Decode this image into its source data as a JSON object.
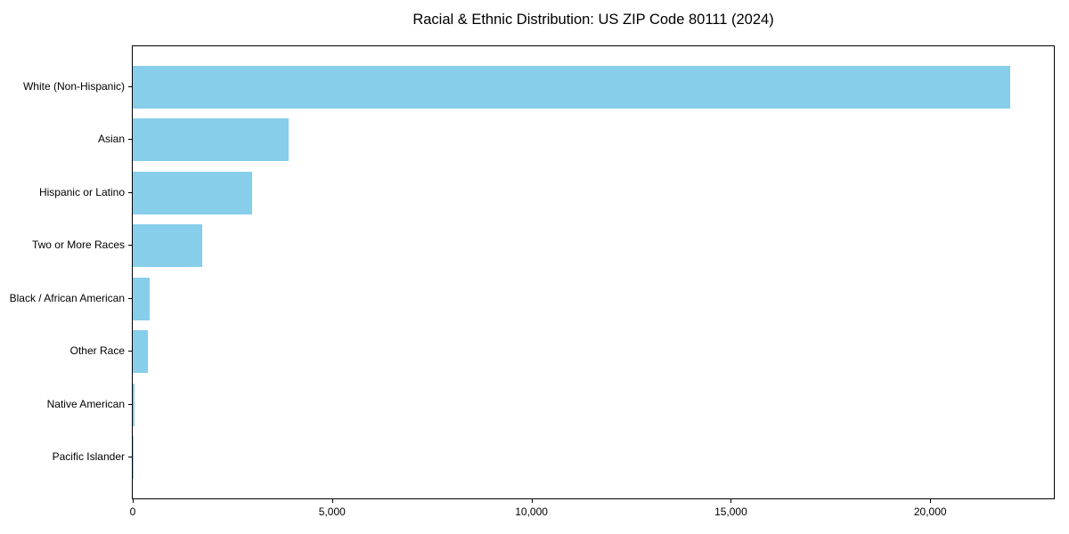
{
  "figure": {
    "background": "#FFFFFF",
    "spine_color": "#000000",
    "text_color": "#000000"
  },
  "chart_data": {
    "type": "bar",
    "orientation": "horizontal",
    "title": "Racial & Ethnic Distribution: US ZIP Code 80111 (2024)",
    "xlabel": "",
    "ylabel": "",
    "categories": [
      "White (Non-Hispanic)",
      "Asian",
      "Hispanic or Latino",
      "Two or More Races",
      "Black / African American",
      "Other Race",
      "Native American",
      "Pacific Islander"
    ],
    "values": [
      22000,
      3900,
      3000,
      1750,
      425,
      375,
      50,
      15
    ],
    "xlim": [
      0,
      23100
    ],
    "x_tick_values": [
      0,
      5000,
      10000,
      15000,
      20000
    ],
    "x_tick_labels": [
      "0",
      "5,000",
      "10,000",
      "15,000",
      "20,000"
    ],
    "bar_color": "#87CEEB",
    "grid": false,
    "legend": null
  }
}
